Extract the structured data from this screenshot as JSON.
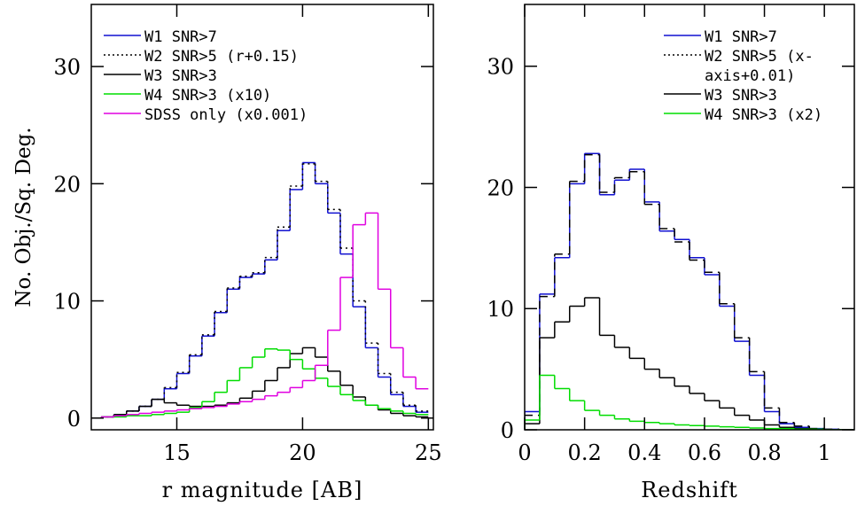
{
  "chart_data": [
    {
      "type": "step-histogram",
      "xlabel": "r magnitude [AB]",
      "ylabel": "No. Obj./Sq. Deg.",
      "xlim": [
        11.6,
        25.2
      ],
      "ylim": [
        -1,
        35.3
      ],
      "xticks": [
        15,
        20,
        25
      ],
      "yticks": [
        0,
        10,
        20,
        30
      ],
      "bins": [
        12,
        12.5,
        13,
        13.5,
        14,
        14.5,
        15,
        15.5,
        16,
        16.5,
        17,
        17.5,
        18,
        18.5,
        19,
        19.5,
        20,
        20.5,
        21,
        21.5,
        22,
        22.5,
        23,
        23.5,
        24,
        24.5,
        25
      ],
      "legend": "upper left",
      "series": [
        {
          "name": "W1 SNR>7",
          "color": "#1010d0",
          "linestyle": "solid",
          "values": [
            0.1,
            0.3,
            0.6,
            1.0,
            1.6,
            2.5,
            3.8,
            5.3,
            7.0,
            9.0,
            11.0,
            12.0,
            12.3,
            13.5,
            16.0,
            19.5,
            21.8,
            20.0,
            17.5,
            14.0,
            9.5,
            6.0,
            3.5,
            2.0,
            1.0,
            0.5
          ]
        },
        {
          "name": "W2 SNR>5 (r+0.15)",
          "color": "#000000",
          "linestyle": "dotted",
          "values": [
            0.1,
            0.3,
            0.6,
            1.0,
            1.6,
            2.6,
            3.9,
            5.4,
            7.1,
            9.1,
            11.1,
            12.1,
            12.4,
            13.7,
            16.3,
            19.8,
            21.7,
            20.2,
            17.8,
            14.5,
            10.0,
            6.4,
            3.8,
            2.2,
            1.1,
            0.6
          ]
        },
        {
          "name": "W3 SNR>3",
          "color": "#000000",
          "linestyle": "solid",
          "values": [
            0.1,
            0.3,
            0.6,
            1.0,
            1.6,
            1.3,
            1.1,
            1.0,
            1.0,
            1.1,
            1.3,
            1.7,
            2.3,
            3.2,
            4.3,
            5.5,
            6.0,
            5.2,
            4.0,
            2.8,
            1.8,
            1.1,
            0.7,
            0.4,
            0.2,
            0.1
          ]
        },
        {
          "name": "W4 SNR>3 (x10)",
          "color": "#00dd00",
          "linestyle": "solid",
          "values": [
            0.1,
            0.1,
            0.2,
            0.2,
            0.3,
            0.4,
            0.5,
            0.9,
            1.4,
            2.2,
            3.2,
            4.3,
            5.2,
            5.9,
            5.8,
            5.0,
            4.2,
            3.4,
            2.7,
            2.0,
            1.5,
            1.1,
            0.8,
            0.6,
            0.4,
            0.3
          ]
        },
        {
          "name": "SDSS only (x0.001)",
          "color": "#e000e0",
          "linestyle": "solid",
          "values": [
            0.1,
            0.2,
            0.3,
            0.4,
            0.5,
            0.6,
            0.7,
            0.8,
            0.9,
            1.0,
            1.2,
            1.4,
            1.6,
            1.9,
            2.2,
            2.6,
            3.2,
            4.5,
            7.5,
            12.0,
            16.5,
            17.5,
            11.0,
            6.0,
            3.5,
            2.5
          ]
        }
      ]
    },
    {
      "type": "step-histogram",
      "xlabel": "Redshift",
      "xlim": [
        0,
        1.1
      ],
      "ylim": [
        0,
        35.1
      ],
      "xticks": [
        0,
        0.2,
        0.4,
        0.6,
        0.8,
        1
      ],
      "yticks": [
        0,
        10,
        20,
        30
      ],
      "bins": [
        0,
        0.05,
        0.1,
        0.15,
        0.2,
        0.25,
        0.3,
        0.35,
        0.4,
        0.45,
        0.5,
        0.55,
        0.6,
        0.65,
        0.7,
        0.75,
        0.8,
        0.85,
        0.9,
        0.95,
        1.0,
        1.05,
        1.1
      ],
      "legend": "upper right",
      "series": [
        {
          "name": "W1 SNR>7",
          "color": "#1010d0",
          "linestyle": "solid",
          "values": [
            1.5,
            11.2,
            14.2,
            20.3,
            22.8,
            19.4,
            20.6,
            21.5,
            18.8,
            16.4,
            15.7,
            14.2,
            12.8,
            10.2,
            7.3,
            4.5,
            1.5,
            0.5,
            0.2,
            0.1,
            0.05,
            0
          ]
        },
        {
          "name": "W2 SNR>5 (x-axis+0.01)",
          "color": "#000000",
          "linestyle": "dashed",
          "values": [
            1.2,
            11.0,
            14.5,
            20.5,
            22.7,
            19.6,
            20.8,
            21.3,
            18.6,
            16.6,
            15.5,
            14.0,
            13.0,
            10.4,
            7.6,
            4.8,
            1.8,
            0.6,
            0.3,
            0.1,
            0.05,
            0
          ]
        },
        {
          "name": "W3 SNR>3",
          "color": "#000000",
          "linestyle": "solid",
          "values": [
            0.5,
            7.6,
            8.9,
            10.2,
            10.9,
            7.8,
            6.8,
            5.9,
            5.0,
            4.3,
            3.6,
            3.0,
            2.4,
            1.8,
            1.2,
            0.8,
            0.4,
            0.2,
            0.1,
            0.05,
            0,
            0
          ]
        },
        {
          "name": "W4 SNR>3 (x2)",
          "color": "#00dd00",
          "linestyle": "solid",
          "values": [
            0.8,
            4.5,
            3.4,
            2.4,
            1.6,
            1.2,
            0.9,
            0.7,
            0.6,
            0.5,
            0.4,
            0.35,
            0.3,
            0.25,
            0.2,
            0.15,
            0.1,
            0.1,
            0.05,
            0.05,
            0,
            0
          ]
        }
      ]
    }
  ]
}
